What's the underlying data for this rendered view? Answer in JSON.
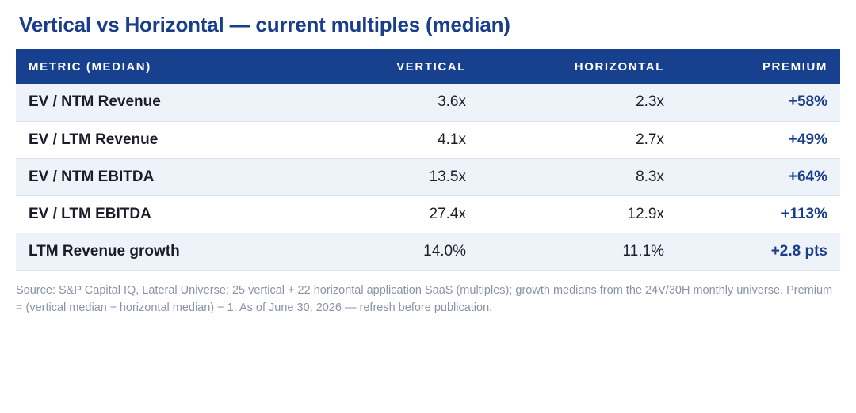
{
  "title": "Vertical vs Horizontal — current multiples (median)",
  "table": {
    "headers": [
      "METRIC (MEDIAN)",
      "VERTICAL",
      "HORIZONTAL",
      "PREMIUM"
    ],
    "rows": [
      {
        "metric": "EV / NTM Revenue",
        "vertical": "3.6x",
        "horizontal": "2.3x",
        "premium": "+58%"
      },
      {
        "metric": "EV / LTM Revenue",
        "vertical": "4.1x",
        "horizontal": "2.7x",
        "premium": "+49%"
      },
      {
        "metric": "EV / NTM EBITDA",
        "vertical": "13.5x",
        "horizontal": "8.3x",
        "premium": "+64%"
      },
      {
        "metric": "EV / LTM EBITDA",
        "vertical": "27.4x",
        "horizontal": "12.9x",
        "premium": "+113%"
      },
      {
        "metric": "LTM Revenue growth",
        "vertical": "14.0%",
        "horizontal": "11.1%",
        "premium": "+2.8 pts"
      }
    ]
  },
  "source": "Source: S&P Capital IQ, Lateral Universe; 25 vertical + 22 horizontal application SaaS (multiples); growth medians from the 24V/30H monthly universe. Premium = (vertical median ÷ horizontal median) − 1. As of June 30, 2026 — refresh before publication.",
  "colors": {
    "header_bg": "#17408f",
    "title": "#1a3e8a",
    "premium_text": "#1a3e8a",
    "alt_row_bg": "#eef2f9",
    "source_text": "#8a93a6"
  }
}
